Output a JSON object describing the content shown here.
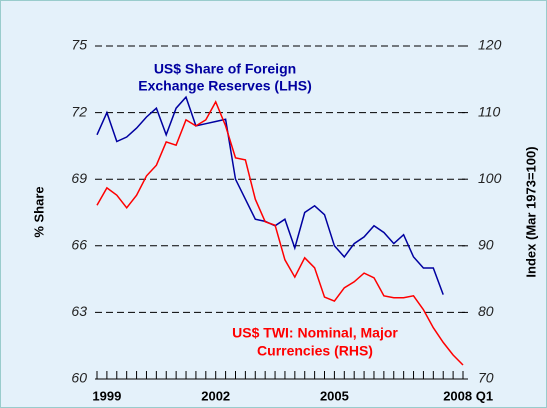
{
  "chart_data": {
    "type": "line",
    "annotations": [
      "US$ Share of Foreign",
      "Exchange Reserves (LHS)",
      "US$ TWI: Nominal, Major",
      "Currencies (RHS)"
    ],
    "ylabel": "% Share",
    "y2label": "Index (Mar 1973=100)",
    "categories": [
      null,
      "1999",
      null,
      null,
      null,
      null,
      null,
      null,
      null,
      null,
      null,
      null,
      "2002",
      null,
      null,
      null,
      null,
      null,
      null,
      null,
      null,
      null,
      null,
      null,
      "2005",
      null,
      null,
      null,
      null,
      null,
      null,
      null,
      null,
      null,
      null,
      "2008 Q1",
      null,
      null
    ],
    "series": [
      {
        "name": "US$ Share of Foreign Exchange Reserves (LHS)",
        "color": "#0000a0",
        "axis": "y",
        "values": [
          71.0,
          72.0,
          70.7,
          70.9,
          71.3,
          71.8,
          72.2,
          71.0,
          72.2,
          72.7,
          71.4,
          71.5,
          71.6,
          71.7,
          69.0,
          68.1,
          67.2,
          67.1,
          66.9,
          67.2,
          65.9,
          67.5,
          67.8,
          67.4,
          66.0,
          65.5,
          66.1,
          66.4,
          66.9,
          66.6,
          66.1,
          66.5,
          65.5,
          65.0,
          65.0,
          63.8,
          null,
          null
        ]
      },
      {
        "name": "US$ TWI: Nominal, Major Currencies (RHS)",
        "color": "#ff0000",
        "axis": "y2",
        "values": [
          96.1,
          98.7,
          97.6,
          95.7,
          97.6,
          100.5,
          102.1,
          105.6,
          105.1,
          108.9,
          108.0,
          108.9,
          111.6,
          108.0,
          103.2,
          102.9,
          97.0,
          93.6,
          93.1,
          87.9,
          85.3,
          88.2,
          86.7,
          82.3,
          81.7,
          83.7,
          84.6,
          85.9,
          85.2,
          82.5,
          82.2,
          82.2,
          82.5,
          80.4,
          77.7,
          75.5,
          73.6,
          72.1
        ]
      }
    ],
    "ylim": [
      60,
      75
    ],
    "yticks": [
      60,
      63,
      66,
      69,
      72,
      75
    ],
    "y2lim": [
      70,
      120
    ],
    "y2ticks": [
      70,
      80,
      90,
      100,
      110,
      120
    ],
    "grid": true
  }
}
